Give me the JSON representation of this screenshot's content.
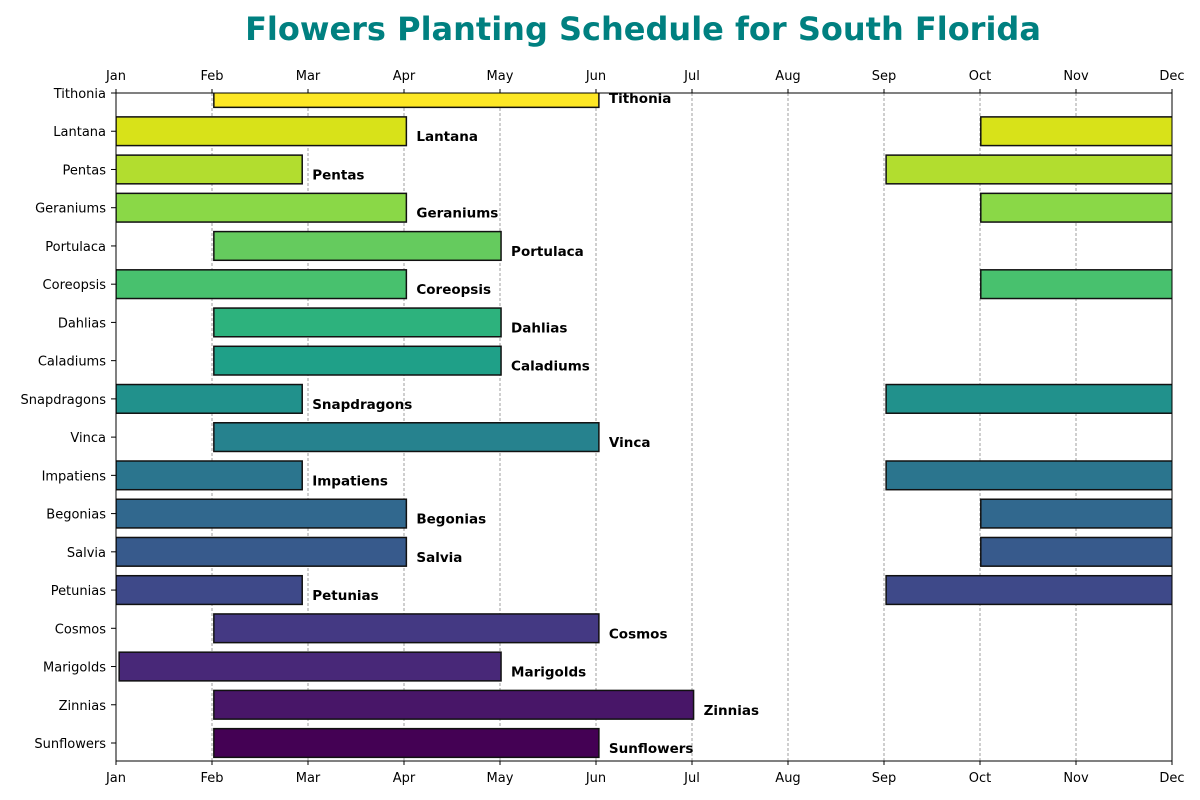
{
  "chart_data": {
    "type": "bar",
    "orientation": "horizontal-gantt",
    "title": "Flowers Planting Schedule for South Florida",
    "title_color": "#008080",
    "xlabel": "",
    "ylabel": "",
    "x_ticks": [
      "Jan",
      "Feb",
      "Mar",
      "Apr",
      "May",
      "Jun",
      "Jul",
      "Aug",
      "Sep",
      "Oct",
      "Nov",
      "Dec"
    ],
    "xlim": [
      "Jan",
      "Dec"
    ],
    "x_ticks_top_and_bottom": true,
    "grid": "vertical dashed",
    "series": [
      {
        "name": "Sunflowers",
        "color": "#440154",
        "periods": [
          [
            "02-01",
            "06-01"
          ]
        ]
      },
      {
        "name": "Zinnias",
        "color": "#481668",
        "periods": [
          [
            "02-01",
            "07-01"
          ]
        ]
      },
      {
        "name": "Marigolds",
        "color": "#482878",
        "periods": [
          [
            "01-02",
            "05-01"
          ]
        ]
      },
      {
        "name": "Cosmos",
        "color": "#443983",
        "periods": [
          [
            "02-01",
            "06-01"
          ]
        ]
      },
      {
        "name": "Petunias",
        "color": "#3e4989",
        "periods": [
          [
            "01-01",
            "02-28"
          ],
          [
            "09-01",
            "12-31"
          ]
        ]
      },
      {
        "name": "Salvia",
        "color": "#375a8c",
        "periods": [
          [
            "01-01",
            "04-01"
          ],
          [
            "10-01",
            "12-31"
          ]
        ]
      },
      {
        "name": "Begonias",
        "color": "#31688e",
        "periods": [
          [
            "01-01",
            "04-01"
          ],
          [
            "10-01",
            "12-31"
          ]
        ]
      },
      {
        "name": "Impatiens",
        "color": "#2b758e",
        "periods": [
          [
            "01-01",
            "02-28"
          ],
          [
            "09-01",
            "12-31"
          ]
        ]
      },
      {
        "name": "Vinca",
        "color": "#26828e",
        "periods": [
          [
            "02-01",
            "06-01"
          ]
        ]
      },
      {
        "name": "Snapdragons",
        "color": "#21918c",
        "periods": [
          [
            "01-01",
            "02-28"
          ],
          [
            "09-01",
            "12-31"
          ]
        ]
      },
      {
        "name": "Caladiums",
        "color": "#1fa088",
        "periods": [
          [
            "02-01",
            "05-01"
          ]
        ]
      },
      {
        "name": "Dahlias",
        "color": "#2db27d",
        "periods": [
          [
            "02-01",
            "05-01"
          ]
        ]
      },
      {
        "name": "Coreopsis",
        "color": "#48c16e",
        "periods": [
          [
            "01-01",
            "04-01"
          ],
          [
            "10-01",
            "12-31"
          ]
        ]
      },
      {
        "name": "Portulaca",
        "color": "#65cb5e",
        "periods": [
          [
            "02-01",
            "05-01"
          ]
        ]
      },
      {
        "name": "Geraniums",
        "color": "#8ad847",
        "periods": [
          [
            "01-01",
            "04-01"
          ],
          [
            "10-01",
            "12-31"
          ]
        ]
      },
      {
        "name": "Pentas",
        "color": "#b2dd2f",
        "periods": [
          [
            "01-01",
            "02-28"
          ],
          [
            "09-01",
            "12-31"
          ]
        ]
      },
      {
        "name": "Lantana",
        "color": "#d8e219",
        "periods": [
          [
            "01-01",
            "04-01"
          ],
          [
            "10-01",
            "12-31"
          ]
        ]
      },
      {
        "name": "Tithonia",
        "color": "#fde725",
        "periods": [
          [
            "02-01",
            "06-01"
          ]
        ]
      }
    ]
  }
}
